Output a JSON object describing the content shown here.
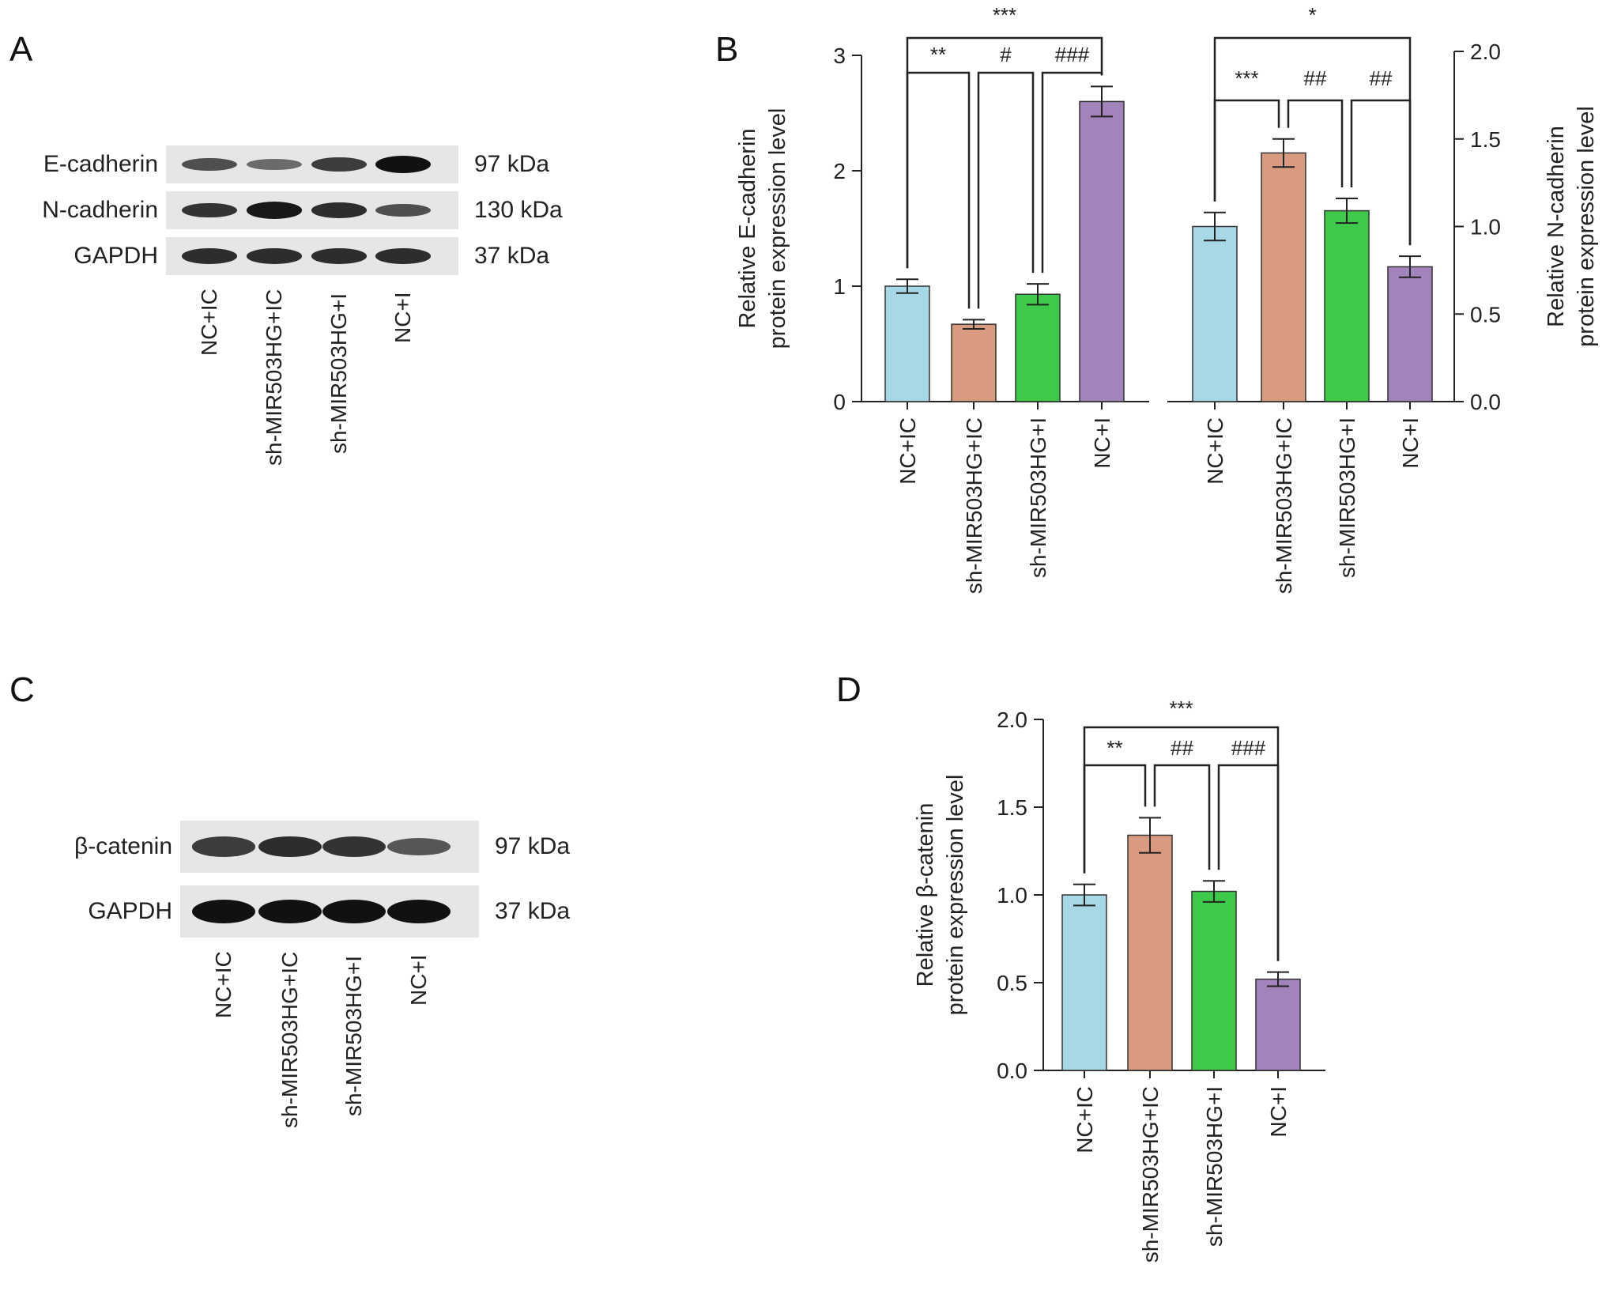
{
  "panels": {
    "a": {
      "letter": "A"
    },
    "b": {
      "letter": "B"
    },
    "c": {
      "letter": "C"
    },
    "d": {
      "letter": "D"
    }
  },
  "blot_a": {
    "rows": [
      {
        "label": "E-cadherin",
        "kda": "97 kDa",
        "intensity": [
          0.55,
          0.35,
          0.7,
          1.0
        ]
      },
      {
        "label": "N-cadherin",
        "kda": "130 kDa",
        "intensity": [
          0.75,
          0.95,
          0.8,
          0.55
        ]
      },
      {
        "label": "GAPDH",
        "kda": "37 kDa",
        "intensity": [
          0.8,
          0.8,
          0.8,
          0.8
        ]
      }
    ],
    "lanes": [
      "NC+IC",
      "sh-MIR503HG+IC",
      "sh-MIR503HG+I",
      "NC+I"
    ]
  },
  "blot_c": {
    "rows": [
      {
        "label": "β-catenin",
        "kda": "97 kDa",
        "intensity": [
          0.7,
          0.8,
          0.75,
          0.5
        ]
      },
      {
        "label": "GAPDH",
        "kda": "37 kDa",
        "intensity": [
          1.0,
          1.0,
          1.0,
          1.0
        ]
      }
    ],
    "lanes": [
      "NC+IC",
      "sh-MIR503HG+IC",
      "sh-MIR503HG+I",
      "NC+I"
    ]
  },
  "colors": {
    "nc_ic": "#a6d8e6",
    "sh_ic": "#d99b80",
    "sh_i": "#3ec94a",
    "nc_i": "#a283bb"
  },
  "chart_data": [
    {
      "id": "B-left",
      "type": "bar",
      "categories": [
        "NC+IC",
        "sh-MIR503HG+IC",
        "sh-MIR503HG+I",
        "NC+I"
      ],
      "values": [
        1.0,
        0.67,
        0.93,
        2.6
      ],
      "errors": [
        0.06,
        0.04,
        0.09,
        0.13
      ],
      "ylabel": [
        "Relative E-cadherin",
        "protein expression level"
      ],
      "ylim": [
        0,
        3
      ],
      "yticks": [
        "0",
        "1",
        "2",
        "3"
      ],
      "ytick_values": [
        0,
        1,
        2,
        3
      ],
      "significance": [
        {
          "label": "***",
          "from": 0,
          "to": 3,
          "level": "outer"
        },
        {
          "label": "**",
          "from": 0,
          "to": 1,
          "level": "inner"
        },
        {
          "label": "#",
          "from": 1,
          "to": 2,
          "level": "inner"
        },
        {
          "label": "###",
          "from": 2,
          "to": 3,
          "level": "inner"
        }
      ]
    },
    {
      "id": "B-right",
      "type": "bar",
      "categories": [
        "NC+IC",
        "sh-MIR503HG+IC",
        "sh-MIR503HG+I",
        "NC+I"
      ],
      "values": [
        1.0,
        1.42,
        1.09,
        0.77
      ],
      "errors": [
        0.08,
        0.08,
        0.07,
        0.06
      ],
      "ylabel": [
        "Relative N-cadherin",
        "protein expression level"
      ],
      "ylim": [
        0,
        2
      ],
      "yticks": [
        "0.0",
        "0.5",
        "1.0",
        "1.5",
        "2.0"
      ],
      "ytick_values": [
        0,
        0.5,
        1.0,
        1.5,
        2.0
      ],
      "axis_side": "right",
      "significance": [
        {
          "label": "*",
          "from": 0,
          "to": 3,
          "level": "outer"
        },
        {
          "label": "***",
          "from": 0,
          "to": 1,
          "level": "inner"
        },
        {
          "label": "##",
          "from": 1,
          "to": 2,
          "level": "inner"
        },
        {
          "label": "##",
          "from": 2,
          "to": 3,
          "level": "inner"
        }
      ]
    },
    {
      "id": "D",
      "type": "bar",
      "categories": [
        "NC+IC",
        "sh-MIR503HG+IC",
        "sh-MIR503HG+I",
        "NC+I"
      ],
      "values": [
        1.0,
        1.34,
        1.02,
        0.52
      ],
      "errors": [
        0.06,
        0.1,
        0.06,
        0.04
      ],
      "ylabel": [
        "Relative β-catenin",
        "protein expression level"
      ],
      "ylim": [
        0,
        2
      ],
      "yticks": [
        "0.0",
        "0.5",
        "1.0",
        "1.5",
        "2.0"
      ],
      "ytick_values": [
        0,
        0.5,
        1.0,
        1.5,
        2.0
      ],
      "significance": [
        {
          "label": "***",
          "from": 0,
          "to": 3,
          "level": "outer"
        },
        {
          "label": "**",
          "from": 0,
          "to": 1,
          "level": "inner"
        },
        {
          "label": "##",
          "from": 1,
          "to": 2,
          "level": "inner"
        },
        {
          "label": "###",
          "from": 2,
          "to": 3,
          "level": "inner"
        }
      ]
    }
  ]
}
